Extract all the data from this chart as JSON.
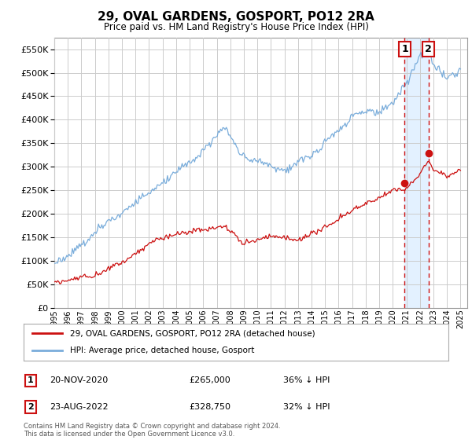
{
  "title": "29, OVAL GARDENS, GOSPORT, PO12 2RA",
  "subtitle": "Price paid vs. HM Land Registry's House Price Index (HPI)",
  "hpi_color": "#7aaddb",
  "price_color": "#cc1111",
  "shade_color": "#ddeeff",
  "ylim": [
    0,
    575000
  ],
  "yticks": [
    0,
    50000,
    100000,
    150000,
    200000,
    250000,
    300000,
    350000,
    400000,
    450000,
    500000,
    550000
  ],
  "legend_entry1": "29, OVAL GARDENS, GOSPORT, PO12 2RA (detached house)",
  "legend_entry2": "HPI: Average price, detached house, Gosport",
  "annotation1_label": "1",
  "annotation1_date": "20-NOV-2020",
  "annotation1_price": "£265,000",
  "annotation1_hpi": "36% ↓ HPI",
  "annotation1_value": 265000,
  "annotation1_year": 2020.88,
  "annotation2_label": "2",
  "annotation2_date": "23-AUG-2022",
  "annotation2_price": "£328,750",
  "annotation2_hpi": "32% ↓ HPI",
  "annotation2_value": 328750,
  "annotation2_year": 2022.64,
  "footer": "Contains HM Land Registry data © Crown copyright and database right 2024.\nThis data is licensed under the Open Government Licence v3.0.",
  "background_color": "#ffffff",
  "grid_color": "#cccccc"
}
